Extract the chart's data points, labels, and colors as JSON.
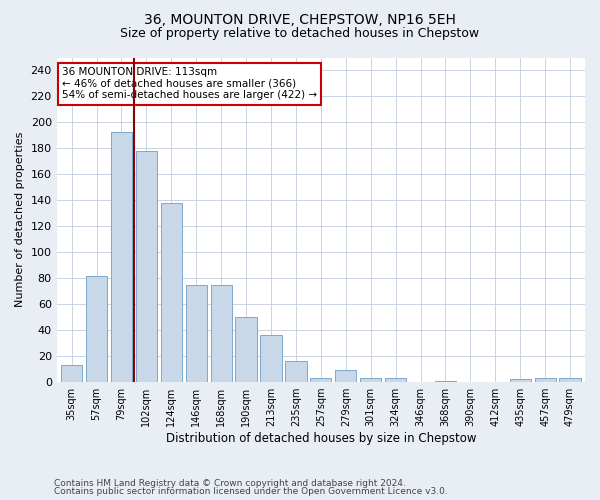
{
  "title1": "36, MOUNTON DRIVE, CHEPSTOW, NP16 5EH",
  "title2": "Size of property relative to detached houses in Chepstow",
  "xlabel": "Distribution of detached houses by size in Chepstow",
  "ylabel": "Number of detached properties",
  "categories": [
    "35sqm",
    "57sqm",
    "79sqm",
    "102sqm",
    "124sqm",
    "146sqm",
    "168sqm",
    "190sqm",
    "213sqm",
    "235sqm",
    "257sqm",
    "279sqm",
    "301sqm",
    "324sqm",
    "346sqm",
    "368sqm",
    "390sqm",
    "412sqm",
    "435sqm",
    "457sqm",
    "479sqm"
  ],
  "values": [
    13,
    82,
    193,
    178,
    138,
    75,
    75,
    50,
    36,
    16,
    3,
    9,
    3,
    3,
    0,
    1,
    0,
    0,
    2,
    3,
    3
  ],
  "bar_color": "#c8d8e8",
  "bar_edge_color": "#7aa8cc",
  "vline_color": "#8b0000",
  "annotation_text": "36 MOUNTON DRIVE: 113sqm\n← 46% of detached houses are smaller (366)\n54% of semi-detached houses are larger (422) →",
  "annotation_box_color": "#ffffff",
  "annotation_box_edge": "#cc0000",
  "ylim": [
    0,
    250
  ],
  "yticks": [
    0,
    20,
    40,
    60,
    80,
    100,
    120,
    140,
    160,
    180,
    200,
    220,
    240
  ],
  "footer1": "Contains HM Land Registry data © Crown copyright and database right 2024.",
  "footer2": "Contains public sector information licensed under the Open Government Licence v3.0.",
  "bg_color": "#e8eef4",
  "plot_bg_color": "#ffffff",
  "grid_color": "#c0ccdd"
}
